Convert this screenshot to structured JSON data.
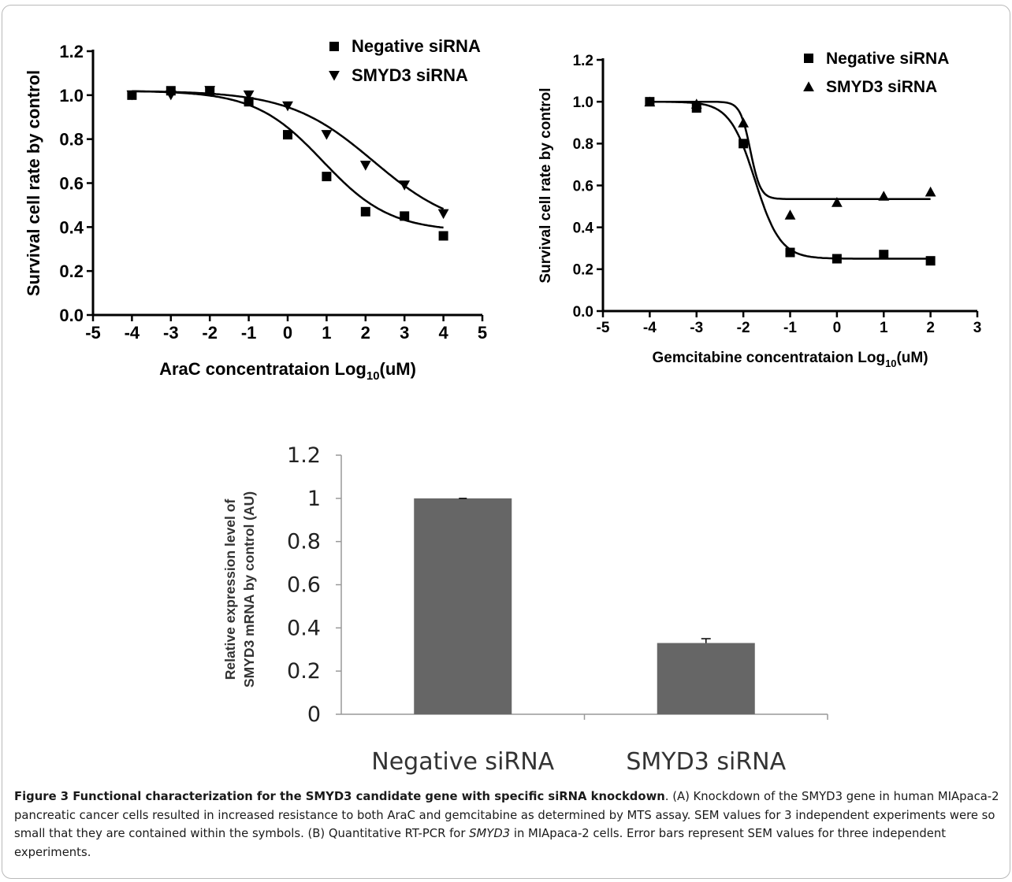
{
  "chart_data": [
    {
      "type": "scatter",
      "panel": "A-left",
      "title": "",
      "xlabel_prefix": "AraC concentrataion Log",
      "xlabel_sub": "10",
      "xlabel_suffix": "(uM)",
      "ylabel": "Survival cell rate by control",
      "xlim": [
        -5,
        5
      ],
      "ylim": [
        0.0,
        1.2
      ],
      "xticks": [
        -5,
        -4,
        -3,
        -2,
        -1,
        0,
        1,
        2,
        3,
        4,
        5
      ],
      "xtick_labels": [
        "-5",
        "-4",
        "-3",
        "-2",
        "-1",
        "0",
        "1",
        "2",
        "3",
        "4",
        "5"
      ],
      "yticks": [
        0.0,
        0.2,
        0.4,
        0.6,
        0.8,
        1.0,
        1.2
      ],
      "ytick_labels": [
        "0.0",
        "0.2",
        "0.4",
        "0.6",
        "0.8",
        "1.0",
        "1.2"
      ],
      "legend_position": "top-right",
      "series": [
        {
          "name": "Negative siRNA",
          "marker": "square",
          "x": [
            -4,
            -3,
            -2,
            -1,
            0,
            1,
            2,
            3,
            4
          ],
          "y": [
            1.0,
            1.02,
            1.02,
            0.97,
            0.82,
            0.63,
            0.47,
            0.45,
            0.36
          ],
          "fit": {
            "bottom": 0.38,
            "top": 1.02,
            "logEC50": 0.9,
            "hill": 0.5
          }
        },
        {
          "name": "SMYD3 siRNA",
          "marker": "triangle-down",
          "x": [
            -4,
            -3,
            -2,
            -1,
            0,
            1,
            2,
            3,
            4
          ],
          "y": [
            1.0,
            1.0,
            1.02,
            1.0,
            0.95,
            0.82,
            0.68,
            0.59,
            0.46
          ],
          "fit": {
            "bottom": 0.38,
            "top": 1.02,
            "logEC50": 2.2,
            "hill": 0.4
          }
        }
      ]
    },
    {
      "type": "scatter",
      "panel": "A-right",
      "title": "",
      "xlabel_prefix": "Gemcitabine concentrataion Log",
      "xlabel_sub": "10",
      "xlabel_suffix": "(uM)",
      "ylabel": "Survival cell rate by control",
      "xlim": [
        -5,
        3
      ],
      "ylim": [
        0.0,
        1.2
      ],
      "xticks": [
        -5,
        -4,
        -3,
        -2,
        -1,
        0,
        1,
        2,
        3
      ],
      "xtick_labels": [
        "-5",
        "-4",
        "-3",
        "-2",
        "-1",
        "0",
        "1",
        "2",
        "3"
      ],
      "yticks": [
        0.0,
        0.2,
        0.4,
        0.6,
        0.8,
        1.0,
        1.2
      ],
      "ytick_labels": [
        "0.0",
        "0.2",
        "0.4",
        "0.6",
        "0.8",
        "1.0",
        "1.2"
      ],
      "legend_position": "top-right",
      "series": [
        {
          "name": "Negative siRNA",
          "marker": "square",
          "x": [
            -4,
            -3,
            -2,
            -1,
            0,
            1,
            2
          ],
          "y": [
            1.0,
            0.97,
            0.8,
            0.28,
            0.25,
            0.27,
            0.24
          ],
          "fit": {
            "bottom": 0.25,
            "top": 1.0,
            "logEC50": -1.75,
            "hill": 1.6
          }
        },
        {
          "name": "SMYD3 siRNA",
          "marker": "triangle-up",
          "x": [
            -4,
            -3,
            -2,
            -1,
            0,
            1,
            2
          ],
          "y": [
            1.0,
            0.99,
            0.9,
            0.46,
            0.52,
            0.55,
            0.57
          ],
          "fit": {
            "bottom": 0.535,
            "top": 1.0,
            "logEC50": -1.85,
            "hill": 4.0
          }
        }
      ]
    },
    {
      "type": "bar",
      "panel": "B",
      "title": "",
      "ylabel_line1": "Relative expression level of",
      "ylabel_line2": "SMYD3 mRNA by control (AU)",
      "categories": [
        "Negative siRNA",
        "SMYD3 siRNA"
      ],
      "values": [
        1.0,
        0.33
      ],
      "errors": [
        0.0,
        0.02
      ],
      "ylim": [
        0,
        1.2
      ],
      "yticks": [
        0,
        0.2,
        0.4,
        0.6,
        0.8,
        1,
        1.2
      ],
      "ytick_labels": [
        "0",
        "0.2",
        "0.4",
        "0.6",
        "0.8",
        "1",
        "1.2"
      ],
      "bar_color": "#666666"
    }
  ],
  "caption": {
    "lead": "Figure 3 Functional characterization for the SMYD3 candidate gene with specific siRNA knockdown",
    "text1": ". (A) Knockdown of the SMYD3 gene in human MIApaca-2 pancreatic cancer cells resulted in increased resistance to both AraC and gemcitabine as determined by MTS assay. SEM values for 3 independent experiments were so small that they are contained within the symbols. (B) Quantitative RT-PCR for ",
    "italic": "SMYD3",
    "text2": " in MIApaca-2 cells. Error bars represent SEM values for three independent experiments."
  }
}
